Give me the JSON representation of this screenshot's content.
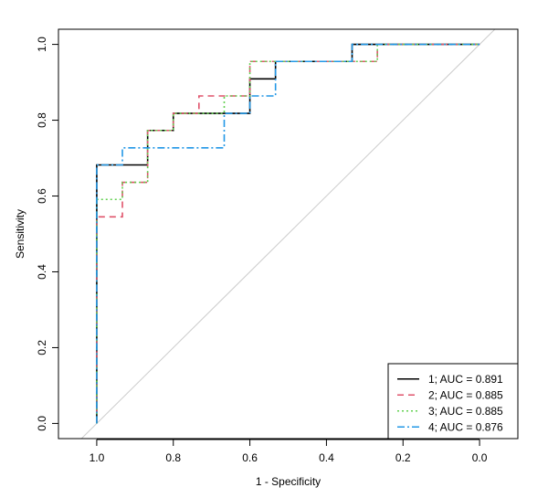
{
  "chart_data": {
    "type": "line",
    "xlabel": "1 - Specificity",
    "ylabel": "Sensitivity",
    "xlim": [
      1.1,
      -0.1
    ],
    "ylim": [
      -0.04,
      1.04
    ],
    "xticks": [
      1.0,
      0.8,
      0.6,
      0.4,
      0.2,
      0.0
    ],
    "xtick_labels": [
      "1.0",
      "0.8",
      "0.6",
      "0.4",
      "0.2",
      "0.0"
    ],
    "yticks": [
      0.0,
      0.2,
      0.4,
      0.6,
      0.8,
      1.0
    ],
    "ytick_labels": [
      "0.0",
      "0.2",
      "0.4",
      "0.6",
      "0.8",
      "1.0"
    ],
    "diagonal": [
      [
        1.0,
        0.0
      ],
      [
        0.0,
        1.0
      ]
    ],
    "diagonal_color": "#cccccc",
    "legend_position": "bottom-right",
    "series": [
      {
        "label": "1; AUC = 0.891",
        "color": "#000000",
        "dash": "",
        "points": [
          [
            1.0,
            0.0
          ],
          [
            1.0,
            0.682
          ],
          [
            0.867,
            0.682
          ],
          [
            0.867,
            0.773
          ],
          [
            0.8,
            0.773
          ],
          [
            0.8,
            0.818
          ],
          [
            0.6,
            0.818
          ],
          [
            0.6,
            0.909
          ],
          [
            0.533,
            0.909
          ],
          [
            0.533,
            0.955
          ],
          [
            0.333,
            0.955
          ],
          [
            0.333,
            1.0
          ],
          [
            0.0,
            1.0
          ]
        ]
      },
      {
        "label": "2; AUC = 0.885",
        "color": "#df536b",
        "dash": "7,5",
        "points": [
          [
            1.0,
            0.0
          ],
          [
            1.0,
            0.545
          ],
          [
            0.933,
            0.545
          ],
          [
            0.933,
            0.636
          ],
          [
            0.867,
            0.636
          ],
          [
            0.867,
            0.773
          ],
          [
            0.8,
            0.773
          ],
          [
            0.8,
            0.818
          ],
          [
            0.733,
            0.818
          ],
          [
            0.733,
            0.864
          ],
          [
            0.6,
            0.864
          ],
          [
            0.6,
            0.955
          ],
          [
            0.267,
            0.955
          ],
          [
            0.267,
            1.0
          ],
          [
            0.0,
            1.0
          ]
        ]
      },
      {
        "label": "3; AUC = 0.885",
        "color": "#61d04f",
        "dash": "2,3",
        "points": [
          [
            1.0,
            0.0
          ],
          [
            1.0,
            0.591
          ],
          [
            0.933,
            0.591
          ],
          [
            0.933,
            0.636
          ],
          [
            0.867,
            0.636
          ],
          [
            0.867,
            0.773
          ],
          [
            0.8,
            0.773
          ],
          [
            0.8,
            0.818
          ],
          [
            0.667,
            0.818
          ],
          [
            0.667,
            0.864
          ],
          [
            0.6,
            0.864
          ],
          [
            0.6,
            0.955
          ],
          [
            0.267,
            0.955
          ],
          [
            0.267,
            1.0
          ],
          [
            0.0,
            1.0
          ]
        ]
      },
      {
        "label": "4; AUC = 0.876",
        "color": "#2297e6",
        "dash": "8,3,2,3",
        "points": [
          [
            1.0,
            0.0
          ],
          [
            1.0,
            0.682
          ],
          [
            0.933,
            0.682
          ],
          [
            0.933,
            0.727
          ],
          [
            0.667,
            0.727
          ],
          [
            0.667,
            0.818
          ],
          [
            0.6,
            0.818
          ],
          [
            0.6,
            0.864
          ],
          [
            0.533,
            0.864
          ],
          [
            0.533,
            0.955
          ],
          [
            0.333,
            0.955
          ],
          [
            0.333,
            1.0
          ],
          [
            0.0,
            1.0
          ]
        ]
      }
    ]
  }
}
